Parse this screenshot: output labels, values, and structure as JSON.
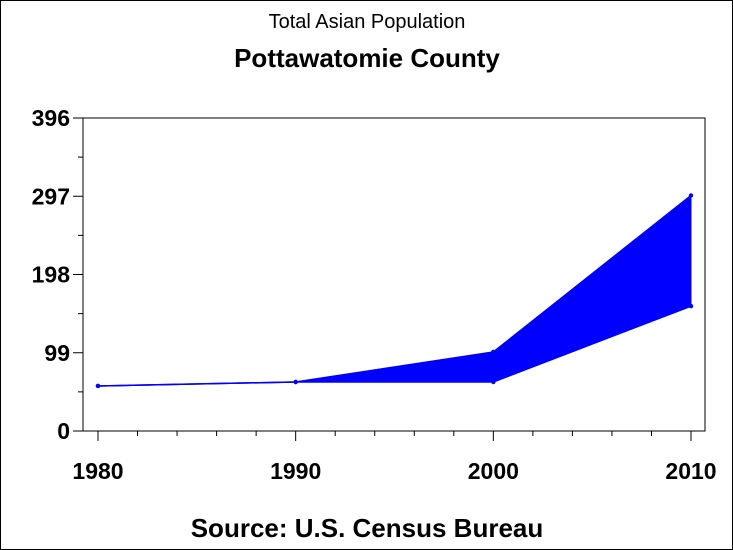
{
  "chart_data": {
    "type": "area",
    "title": "Total Asian Population",
    "subtitle": "Pottawatomie County",
    "footnote": "Source: U.S. Census Bureau",
    "x": [
      1980,
      1990,
      2000,
      2010
    ],
    "x_ticks": [
      "1980",
      "1990",
      "2000",
      "2010"
    ],
    "y_ticks": [
      "0",
      "99",
      "198",
      "297",
      "396"
    ],
    "xlim": [
      1980,
      2010
    ],
    "ylim": [
      0,
      396
    ],
    "grid": false,
    "band": {
      "upper": [
        57,
        62,
        100,
        298
      ],
      "lower": [
        57,
        62,
        62,
        158
      ]
    },
    "colors": {
      "band": "#0000ff",
      "line": "#0000ff",
      "axis": "#000000"
    }
  }
}
